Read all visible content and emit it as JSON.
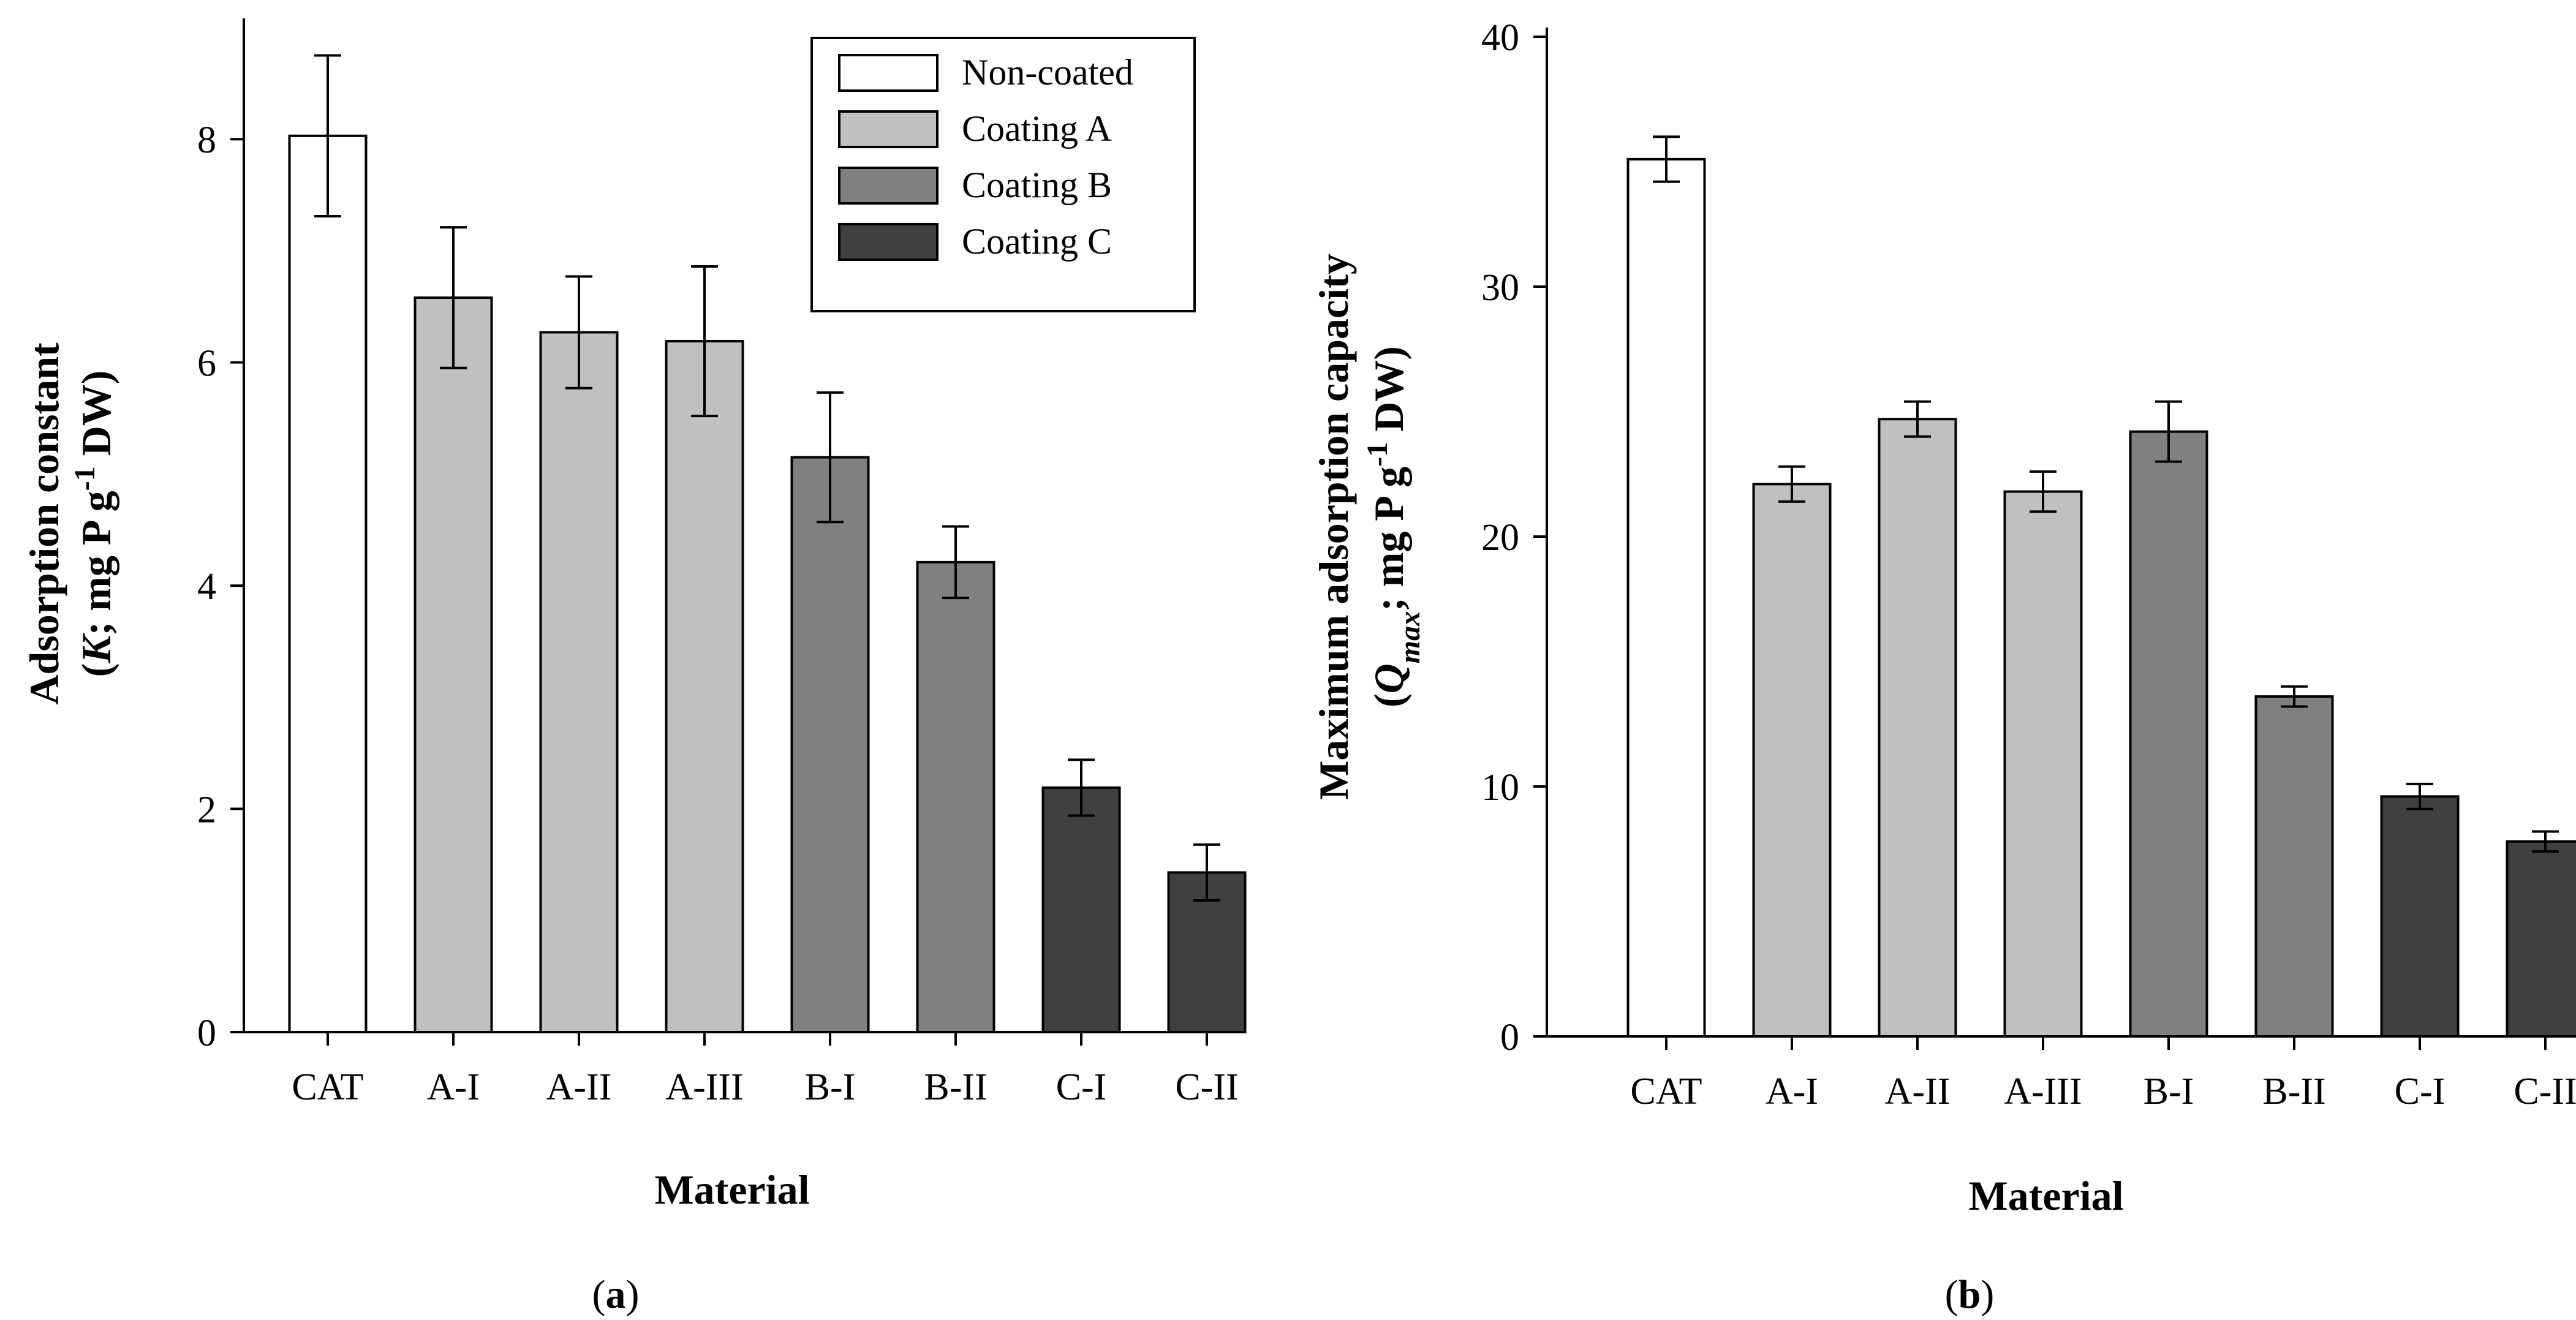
{
  "chart_data": [
    {
      "type": "bar",
      "panel_label": "(a)",
      "categories": [
        "CAT",
        "A-I",
        "A-II",
        "A-III",
        "B-I",
        "B-II",
        "C-I",
        "C-II"
      ],
      "groups": [
        "Non-coated",
        "Coating A",
        "Coating A",
        "Coating A",
        "Coating B",
        "Coating B",
        "Coating C",
        "Coating C"
      ],
      "values": [
        8.03,
        6.58,
        6.27,
        6.19,
        5.15,
        4.21,
        2.19,
        1.43
      ],
      "errors": [
        0.72,
        0.63,
        0.5,
        0.67,
        0.58,
        0.32,
        0.25,
        0.25
      ],
      "xlabel": "Material",
      "ylabel_line1": "Adsorption constant",
      "ylabel_line2": "(K; mg P g⁻¹ DW)",
      "ylim": [
        0,
        9
      ],
      "yticks": [
        0,
        2,
        4,
        6,
        8
      ],
      "legend": {
        "placement": "top-right",
        "entries": [
          {
            "label": "Non-coated",
            "color": "#ffffff"
          },
          {
            "label": "Coating A",
            "color": "#c0c0c0"
          },
          {
            "label": "Coating B",
            "color": "#808080"
          },
          {
            "label": "Coating C",
            "color": "#404040"
          }
        ]
      }
    },
    {
      "type": "bar",
      "panel_label": "(b)",
      "categories": [
        "CAT",
        "A-I",
        "A-II",
        "A-III",
        "B-I",
        "B-II",
        "C-I",
        "C-II"
      ],
      "groups": [
        "Non-coated",
        "Coating A",
        "Coating A",
        "Coating A",
        "Coating B",
        "Coating B",
        "Coating C",
        "Coating C"
      ],
      "values": [
        35.1,
        22.1,
        24.7,
        21.8,
        24.2,
        13.6,
        9.6,
        7.8
      ],
      "errors": [
        0.9,
        0.7,
        0.7,
        0.8,
        1.2,
        0.4,
        0.5,
        0.4
      ],
      "xlabel": "Material",
      "ylabel_line1": "Maximum adsorption capacity",
      "ylabel_line2": "(Qmax; mg P g⁻¹ DW)",
      "ylim": [
        0,
        40
      ],
      "yticks": [
        0,
        10,
        20,
        30,
        40
      ]
    }
  ],
  "colors": {
    "Non-coated": "#ffffff",
    "Coating A": "#c0c0c0",
    "Coating B": "#808080",
    "Coating C": "#404040"
  }
}
